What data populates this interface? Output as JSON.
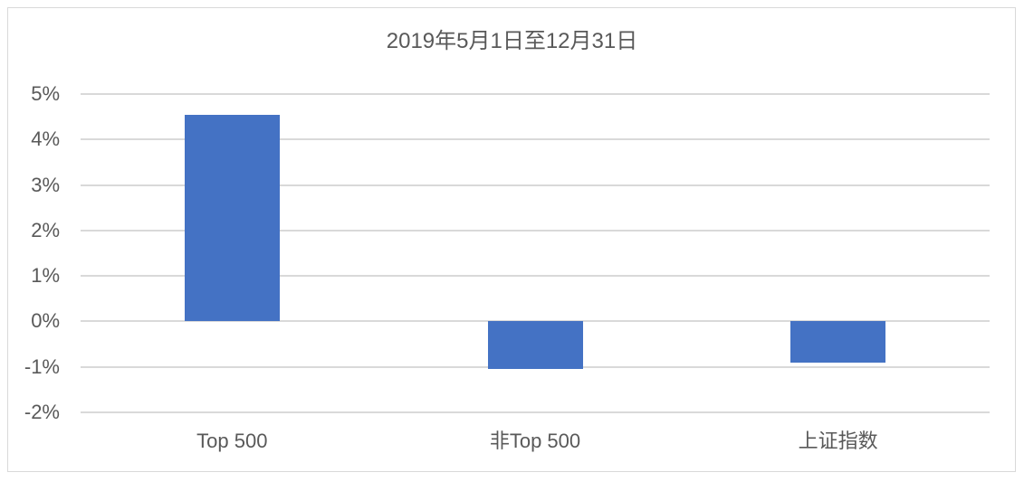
{
  "chart_data": {
    "type": "bar",
    "title": "2019年5月1日至12月31日",
    "categories": [
      "Top 500",
      "非Top 500",
      "上证指数"
    ],
    "values": [
      4.55,
      -1.05,
      -0.9
    ],
    "unit": "%",
    "xlabel": "",
    "ylabel": "",
    "ylim": [
      -2,
      5
    ],
    "ytick_interval": 1,
    "ytick_labels": [
      "5%",
      "4%",
      "3%",
      "2%",
      "1%",
      "0%",
      "-1%",
      "-2%"
    ],
    "grid": true,
    "legend": "none",
    "colors": {
      "bar": "#4472C4",
      "gridline": "#D9D9D9",
      "text": "#595959",
      "frame_border": "#D9D9D9",
      "background": "#FFFFFF"
    }
  }
}
